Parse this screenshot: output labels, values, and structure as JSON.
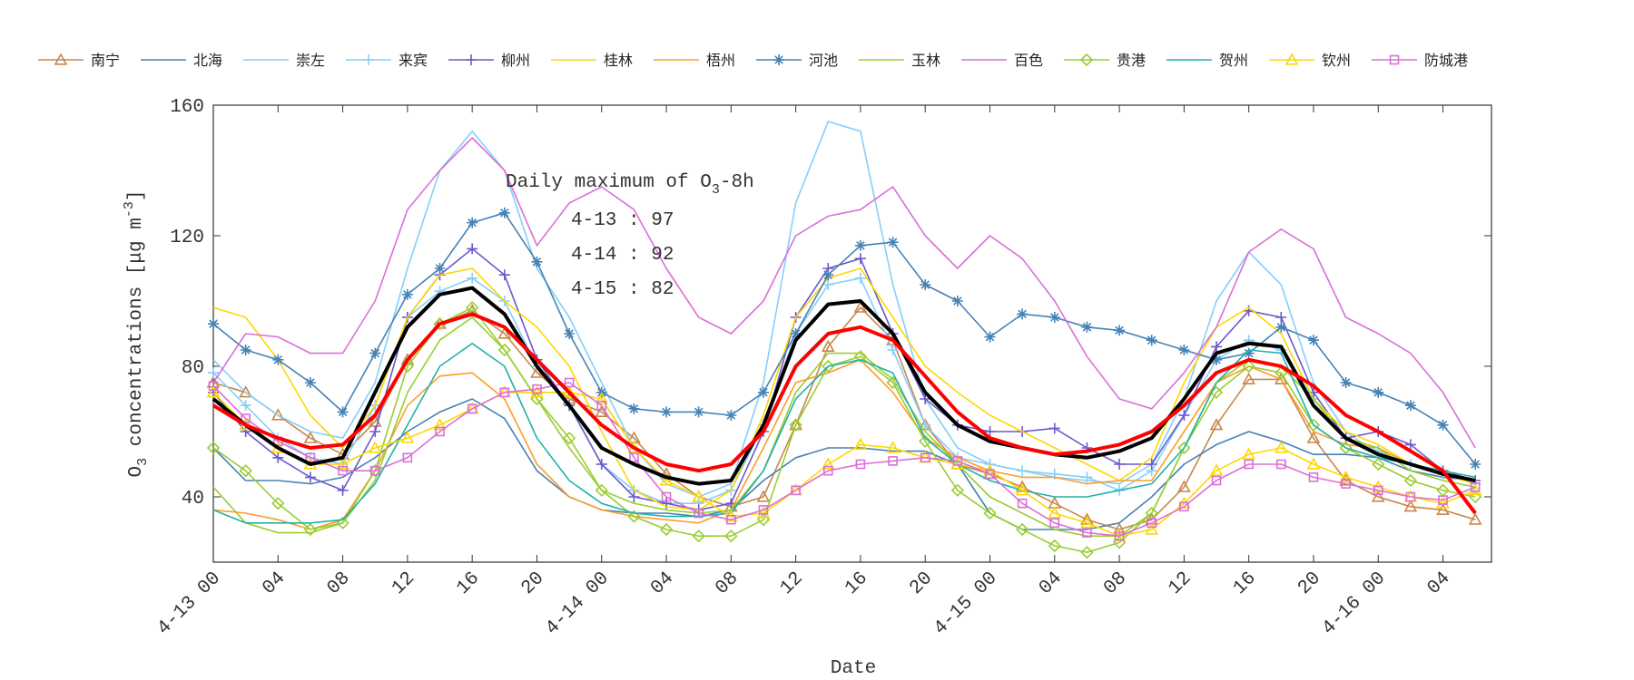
{
  "chart_data": {
    "type": "line",
    "legend_position": "top",
    "xlabel": "Date",
    "ylabel_parts": [
      "O",
      "3",
      " concentrations [μg m",
      "-3",
      "]"
    ],
    "annotation": {
      "title_parts": [
        "Daily maximum of O",
        "3",
        "-8h"
      ],
      "lines": [
        "4-13 : 97",
        "4-14 : 92",
        "4-15 : 82"
      ]
    },
    "xlim": [
      0,
      79
    ],
    "ylim": [
      20,
      160
    ],
    "yticks": [
      40,
      80,
      120,
      160
    ],
    "xticks": [
      {
        "value": 0,
        "label": "4-13 00"
      },
      {
        "value": 4,
        "label": "04"
      },
      {
        "value": 8,
        "label": "08"
      },
      {
        "value": 12,
        "label": "12"
      },
      {
        "value": 16,
        "label": "16"
      },
      {
        "value": 20,
        "label": "20"
      },
      {
        "value": 24,
        "label": "4-14 00"
      },
      {
        "value": 28,
        "label": "04"
      },
      {
        "value": 32,
        "label": "08"
      },
      {
        "value": 36,
        "label": "12"
      },
      {
        "value": 40,
        "label": "16"
      },
      {
        "value": 44,
        "label": "20"
      },
      {
        "value": 48,
        "label": "4-15 00"
      },
      {
        "value": 52,
        "label": "04"
      },
      {
        "value": 56,
        "label": "08"
      },
      {
        "value": 60,
        "label": "12"
      },
      {
        "value": 64,
        "label": "16"
      },
      {
        "value": 68,
        "label": "20"
      },
      {
        "value": 72,
        "label": "4-16 00"
      },
      {
        "value": 76,
        "label": "04"
      }
    ],
    "x": [
      0,
      2,
      4,
      6,
      8,
      10,
      12,
      14,
      16,
      18,
      20,
      22,
      24,
      26,
      28,
      30,
      32,
      34,
      36,
      38,
      40,
      42,
      44,
      46,
      48,
      50,
      52,
      54,
      56,
      58,
      60,
      62,
      64,
      66,
      68,
      70,
      72,
      74,
      76,
      78
    ],
    "series": [
      {
        "name": "南宁",
        "color": "#c8874a",
        "marker": "triangle",
        "values": [
          75,
          72,
          65,
          58,
          53,
          63,
          82,
          93,
          97,
          90,
          78,
          70,
          66,
          58,
          47,
          40,
          37,
          40,
          62,
          86,
          98,
          88,
          62,
          50,
          47,
          43,
          38,
          33,
          30,
          33,
          43,
          62,
          76,
          76,
          58,
          45,
          40,
          37,
          36,
          33
        ]
      },
      {
        "name": "北海",
        "color": "#4682b4",
        "values": [
          55,
          45,
          45,
          44,
          46,
          52,
          60,
          66,
          70,
          64,
          48,
          40,
          36,
          35,
          35,
          34,
          36,
          45,
          52,
          55,
          55,
          54,
          54,
          50,
          35,
          30,
          30,
          30,
          32,
          40,
          50,
          56,
          60,
          57,
          53,
          53,
          52,
          48,
          46,
          45
        ]
      },
      {
        "name": "崇左",
        "color": "#87cefa",
        "values": [
          82,
          72,
          65,
          60,
          58,
          75,
          110,
          140,
          152,
          140,
          110,
          95,
          75,
          55,
          44,
          40,
          44,
          75,
          130,
          155,
          152,
          105,
          70,
          55,
          50,
          48,
          46,
          45,
          44,
          50,
          70,
          100,
          115,
          105,
          75,
          60,
          53,
          50,
          47,
          45
        ]
      },
      {
        "name": "来宾",
        "color": "#87cefa",
        "marker": "plus",
        "values": [
          78,
          68,
          58,
          52,
          50,
          68,
          95,
          103,
          107,
          100,
          80,
          68,
          50,
          42,
          38,
          38,
          42,
          62,
          90,
          105,
          107,
          85,
          62,
          52,
          50,
          48,
          47,
          46,
          42,
          48,
          65,
          82,
          88,
          85,
          70,
          58,
          54,
          50,
          47,
          44
        ]
      },
      {
        "name": "柳州",
        "color": "#6a5acd",
        "marker": "plus",
        "values": [
          72,
          60,
          52,
          46,
          42,
          60,
          95,
          108,
          116,
          108,
          82,
          68,
          50,
          40,
          38,
          36,
          38,
          60,
          95,
          110,
          113,
          90,
          70,
          62,
          60,
          60,
          61,
          55,
          50,
          50,
          65,
          86,
          97,
          95,
          72,
          58,
          60,
          56,
          48,
          45
        ]
      },
      {
        "name": "桂林",
        "color": "#ffd700",
        "values": [
          98,
          95,
          82,
          65,
          55,
          68,
          95,
          108,
          110,
          100,
          92,
          80,
          60,
          42,
          37,
          36,
          42,
          65,
          95,
          107,
          110,
          95,
          80,
          72,
          65,
          60,
          55,
          50,
          45,
          52,
          75,
          92,
          98,
          90,
          70,
          60,
          56,
          50,
          47,
          44
        ]
      },
      {
        "name": "梧州",
        "color": "#ff9c2a",
        "values": [
          36,
          35,
          33,
          30,
          33,
          48,
          68,
          77,
          78,
          70,
          50,
          40,
          36,
          34,
          33,
          32,
          36,
          55,
          75,
          78,
          82,
          72,
          58,
          52,
          48,
          46,
          46,
          44,
          45,
          45,
          60,
          75,
          80,
          76,
          60,
          56,
          55,
          50,
          48,
          44
        ]
      },
      {
        "name": "河池",
        "color": "#4682b4",
        "marker": "star",
        "values": [
          93,
          85,
          82,
          75,
          66,
          84,
          102,
          110,
          124,
          127,
          112,
          90,
          72,
          67,
          66,
          66,
          65,
          72,
          90,
          108,
          117,
          118,
          105,
          100,
          89,
          96,
          95,
          92,
          91,
          88,
          85,
          82,
          84,
          92,
          88,
          75,
          72,
          68,
          62,
          50
        ]
      },
      {
        "name": "玉林",
        "color": "#9acd32",
        "values": [
          43,
          32,
          29,
          29,
          32,
          45,
          72,
          88,
          95,
          85,
          70,
          55,
          42,
          38,
          36,
          35,
          36,
          48,
          72,
          84,
          84,
          76,
          60,
          50,
          40,
          35,
          30,
          28,
          28,
          35,
          55,
          75,
          82,
          80,
          70,
          58,
          55,
          48,
          45,
          43
        ]
      },
      {
        "name": "百色",
        "color": "#da70d6",
        "values": [
          75,
          90,
          89,
          84,
          84,
          100,
          128,
          140,
          150,
          140,
          117,
          130,
          135,
          128,
          110,
          95,
          90,
          100,
          120,
          126,
          128,
          135,
          120,
          110,
          120,
          113,
          100,
          83,
          70,
          67,
          78,
          92,
          115,
          122,
          116,
          95,
          90,
          84,
          72,
          55
        ]
      },
      {
        "name": "贵港",
        "color": "#9acd32",
        "marker": "diamond",
        "values": [
          55,
          48,
          38,
          30,
          32,
          48,
          80,
          93,
          98,
          85,
          70,
          58,
          42,
          34,
          30,
          28,
          28,
          33,
          62,
          80,
          83,
          75,
          57,
          42,
          35,
          30,
          25,
          23,
          26,
          35,
          55,
          72,
          80,
          78,
          62,
          55,
          50,
          45,
          42,
          40
        ]
      },
      {
        "name": "贺州",
        "color": "#20b2aa",
        "values": [
          36,
          32,
          32,
          32,
          33,
          44,
          62,
          80,
          87,
          80,
          58,
          45,
          38,
          35,
          34,
          34,
          35,
          48,
          70,
          80,
          82,
          78,
          58,
          50,
          45,
          42,
          40,
          40,
          42,
          44,
          55,
          75,
          85,
          84,
          62,
          55,
          52,
          50,
          48,
          46
        ]
      },
      {
        "name": "钦州",
        "color": "#ffd700",
        "marker": "triangle",
        "values": [
          72,
          62,
          55,
          50,
          50,
          55,
          58,
          62,
          67,
          72,
          72,
          72,
          70,
          55,
          45,
          40,
          34,
          35,
          42,
          50,
          56,
          55,
          52,
          50,
          48,
          42,
          35,
          32,
          28,
          30,
          38,
          48,
          53,
          55,
          50,
          46,
          43,
          40,
          38,
          42
        ]
      },
      {
        "name": "防城港",
        "color": "#da70d6",
        "marker": "square",
        "values": [
          74,
          64,
          57,
          52,
          48,
          48,
          52,
          60,
          67,
          72,
          73,
          75,
          68,
          52,
          40,
          35,
          33,
          36,
          42,
          48,
          50,
          51,
          52,
          51,
          47,
          38,
          32,
          29,
          28,
          32,
          37,
          45,
          50,
          50,
          46,
          44,
          42,
          40,
          39,
          43
        ]
      },
      {
        "color": "#000000",
        "linewidth": 4,
        "values": [
          70,
          62,
          55,
          50,
          52,
          72,
          92,
          102,
          104,
          96,
          80,
          68,
          55,
          50,
          46,
          44,
          45,
          62,
          88,
          99,
          100,
          90,
          72,
          62,
          57,
          55,
          53,
          52,
          54,
          58,
          70,
          84,
          87,
          86,
          68,
          58,
          53,
          50,
          47,
          45
        ]
      },
      {
        "color": "#ff0000",
        "linewidth": 4,
        "values": [
          68,
          62,
          58,
          55,
          56,
          65,
          82,
          93,
          96,
          92,
          82,
          72,
          62,
          55,
          50,
          48,
          50,
          60,
          80,
          90,
          92,
          88,
          77,
          66,
          58,
          55,
          53,
          54,
          56,
          60,
          68,
          78,
          82,
          80,
          74,
          65,
          60,
          54,
          48,
          35
        ]
      }
    ]
  }
}
